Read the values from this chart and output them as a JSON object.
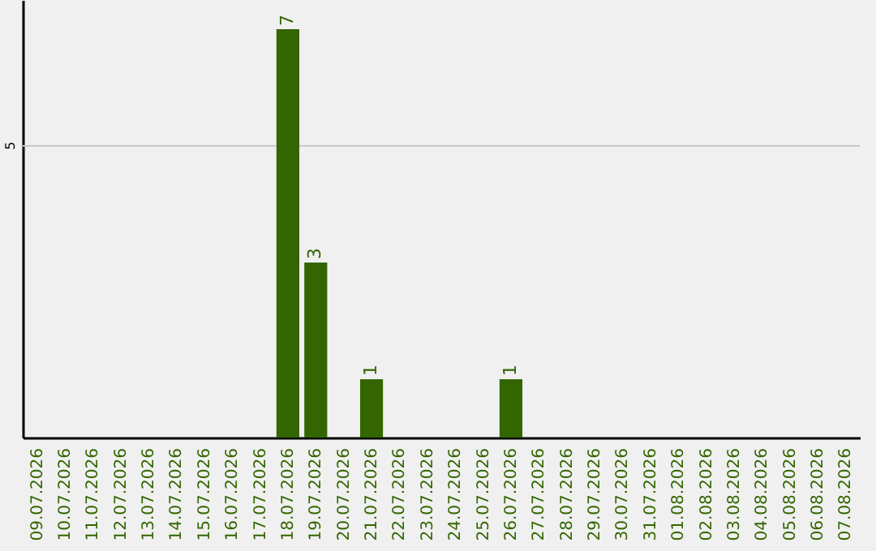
{
  "chart_data": {
    "type": "bar",
    "categories": [
      "09.07.2026",
      "10.07.2026",
      "11.07.2026",
      "12.07.2026",
      "13.07.2026",
      "14.07.2026",
      "15.07.2026",
      "16.07.2026",
      "17.07.2026",
      "18.07.2026",
      "19.07.2026",
      "20.07.2026",
      "21.07.2026",
      "22.07.2026",
      "23.07.2026",
      "24.07.2026",
      "25.07.2026",
      "26.07.2026",
      "27.07.2026",
      "28.07.2026",
      "29.07.2026",
      "30.07.2026",
      "31.07.2026",
      "01.08.2026",
      "02.08.2026",
      "03.08.2026",
      "04.08.2026",
      "05.08.2026",
      "06.08.2026",
      "07.08.2026"
    ],
    "values": [
      0,
      0,
      0,
      0,
      0,
      0,
      0,
      0,
      0,
      7,
      3,
      0,
      1,
      0,
      0,
      0,
      0,
      1,
      0,
      0,
      0,
      0,
      0,
      0,
      0,
      0,
      0,
      0,
      0,
      0
    ],
    "value_labels": [
      null,
      null,
      null,
      null,
      null,
      null,
      null,
      null,
      null,
      "7",
      "3",
      null,
      "1",
      null,
      null,
      null,
      null,
      "1",
      null,
      null,
      null,
      null,
      null,
      null,
      null,
      null,
      null,
      null,
      null,
      null
    ],
    "color": "#336600",
    "ylim": [
      0,
      7.5
    ],
    "ref_lines": [
      {
        "axis": "y",
        "value": 5,
        "label": "5",
        "color": "#c8c8c8"
      }
    ]
  }
}
